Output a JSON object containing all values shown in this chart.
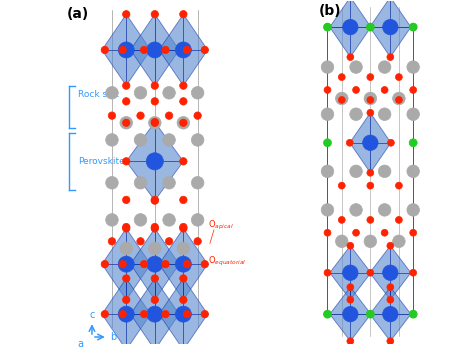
{
  "bg_color": "#ffffff",
  "panel_a_label": "(a)",
  "panel_b_label": "(b)",
  "rock_salt_label": "Rock salt",
  "perovskite_label": "Perovskite",
  "o_apical_label": "O$_{apical}$",
  "o_equatorial_label": "O$_{equatorial}$",
  "label_color": "#3399ff",
  "red_atom": "#ff2200",
  "blue_atom": "#2255dd",
  "gray_atom": "#aaaaaa",
  "green_atom": "#22cc22",
  "oct_face": "#5588cc",
  "oct_edge": "#1133aa"
}
